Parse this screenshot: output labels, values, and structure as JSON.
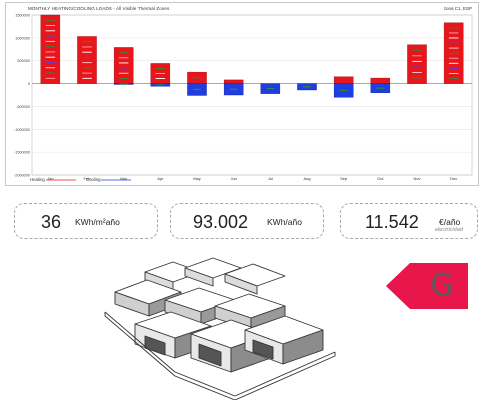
{
  "chart": {
    "title": "MONTHLY HEATING/COOLING LOADS - All Visible Thermal Zones",
    "tag": "zona C1, ESP",
    "legend_heating": "Heating",
    "legend_cooling": "Cooling"
  },
  "chart_data": {
    "type": "bar",
    "title": "MONTHLY HEATING/COOLING LOADS - All Visible Thermal Zones",
    "categories": [
      "Jan",
      "Feb",
      "Mar",
      "Apr",
      "May",
      "Jun",
      "Jul",
      "Aug",
      "Sep",
      "Oct",
      "Nov",
      "Dec"
    ],
    "series": [
      {
        "name": "Heating",
        "color": "#e8161b",
        "values": [
          1500000,
          1030000,
          790000,
          440000,
          250000,
          80000,
          0,
          0,
          150000,
          120000,
          850000,
          1330000
        ]
      },
      {
        "name": "Cooling",
        "color": "#1f3de0",
        "values": [
          0,
          0,
          -20000,
          -60000,
          -260000,
          -250000,
          -220000,
          -140000,
          -300000,
          -200000,
          0,
          0
        ]
      }
    ],
    "ylim": [
      -2000000,
      1500000
    ],
    "yticks": [
      "1500000",
      "1000000",
      "500000",
      "0",
      "-500000",
      "-1000000",
      "-1500000",
      "-2000000"
    ],
    "grid": true,
    "legend": "bottom-left"
  },
  "kpis": [
    {
      "value": "36",
      "unit": "KWh/m²año",
      "sub": ""
    },
    {
      "value": "93.002",
      "unit": "KWh/año",
      "sub": ""
    },
    {
      "value": "11.542",
      "unit": "€/año",
      "sub": "electricidad"
    }
  ],
  "energy_rating": {
    "letter": "G",
    "color": "#e8164a"
  }
}
